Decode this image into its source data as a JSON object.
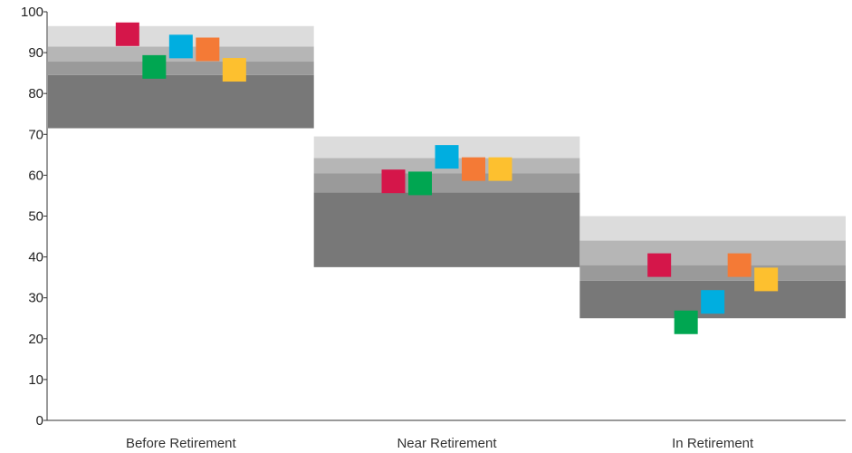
{
  "chart_data": {
    "type": "scatter",
    "title": "",
    "xlabel": "",
    "ylabel": "",
    "ylim": [
      0,
      100
    ],
    "yticks": [
      0,
      10,
      20,
      30,
      40,
      50,
      60,
      70,
      80,
      90,
      100
    ],
    "categories": [
      "Before Retirement",
      "Near Retirement",
      "In Retirement"
    ],
    "band_colors": [
      "#787878",
      "#9a9a9a",
      "#b6b6b6",
      "#dcdcdc"
    ],
    "bands": [
      [
        {
          "from": 71.5,
          "to": 84.5
        },
        {
          "from": 84.5,
          "to": 87.8
        },
        {
          "from": 87.8,
          "to": 91.5
        },
        {
          "from": 91.5,
          "to": 96.5
        }
      ],
      [
        {
          "from": 37.5,
          "to": 55.8
        },
        {
          "from": 55.8,
          "to": 60.5
        },
        {
          "from": 60.5,
          "to": 64.2
        },
        {
          "from": 64.2,
          "to": 69.5
        }
      ],
      [
        {
          "from": 25.0,
          "to": 34.2
        },
        {
          "from": 34.2,
          "to": 38.0
        },
        {
          "from": 38.0,
          "to": 44.0
        },
        {
          "from": 44.0,
          "to": 50.0
        }
      ]
    ],
    "series_colors": [
      "#d5164a",
      "#00a651",
      "#00aee0",
      "#f47a36",
      "#fdc02f"
    ],
    "series": [
      {
        "values": [
          94.5,
          58.5,
          38.0
        ]
      },
      {
        "values": [
          86.5,
          58.0,
          24.0
        ]
      },
      {
        "values": [
          91.5,
          64.5,
          29.0
        ]
      },
      {
        "values": [
          90.8,
          61.5,
          38.0
        ]
      },
      {
        "values": [
          85.8,
          61.5,
          34.5
        ]
      }
    ]
  }
}
